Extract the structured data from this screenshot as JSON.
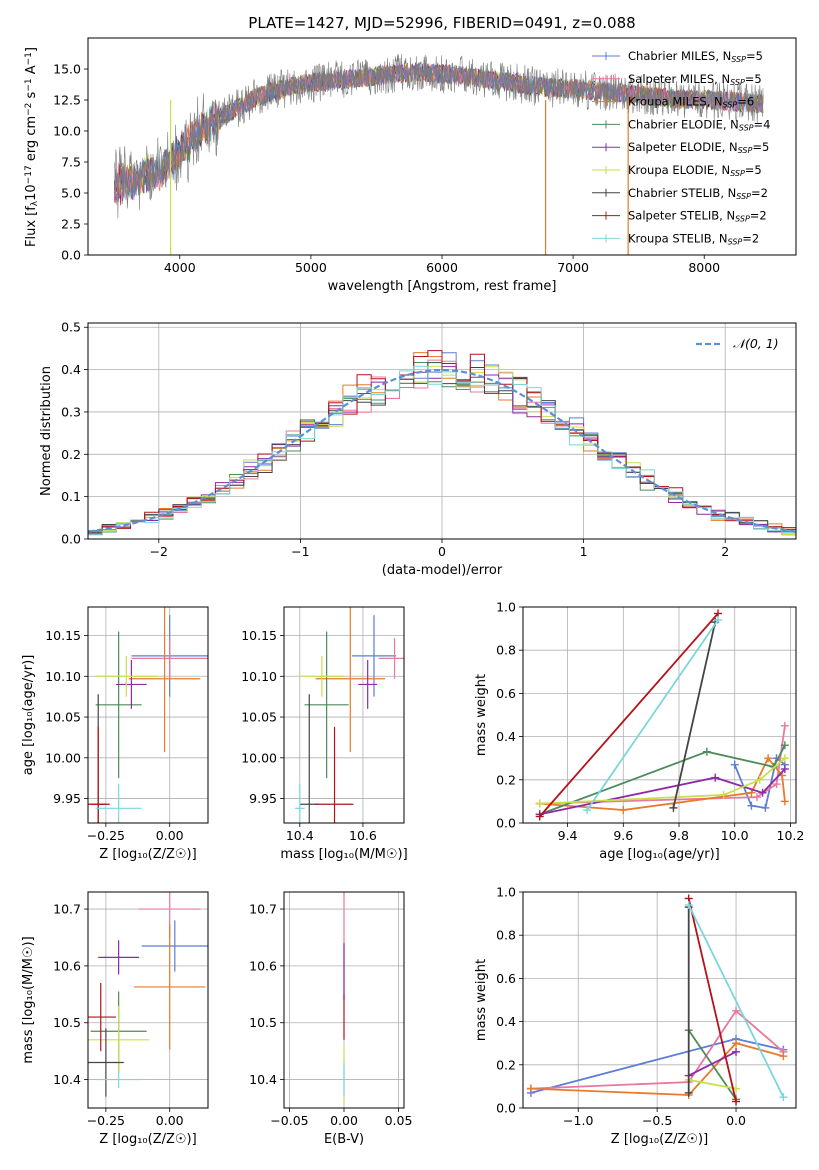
{
  "figure_title": "PLATE=1427, MJD=52996, FIBERID=0491, z=0.088",
  "colors": {
    "Chabrier MILES": "#5b7fd6",
    "Salpeter MILES": "#e8789e",
    "Kroupa MILES": "#e87a2c",
    "Chabrier ELODIE": "#4f8a5a",
    "Salpeter ELODIE": "#8e2aa8",
    "Kroupa ELODIE": "#c6e04a",
    "Chabrier STELIB": "#444444",
    "Salpeter STELIB": "#b3131b",
    "Kroupa STELIB": "#79d7dc"
  },
  "chart_data": [
    {
      "id": "spectrum",
      "type": "line",
      "title": "PLATE=1427, MJD=52996, FIBERID=0491, z=0.088",
      "xlabel": "wavelength [Angstrom, rest frame]",
      "ylabel": "Flux [f$_\\lambda$10$^{-17}$ erg cm$^{-2}$ s$^{-1}$ A$^{-1}$]",
      "ylabel_parts": [
        "Flux [f",
        "λ",
        "10",
        "−17",
        " erg cm",
        "−2",
        " s",
        "−1",
        " A",
        "−1",
        "]"
      ],
      "xlim": [
        3300,
        8700
      ],
      "ylim": [
        0,
        17.5
      ],
      "xticks": [
        4000,
        5000,
        6000,
        7000,
        8000
      ],
      "xtick_labels": [
        "4000",
        "5000",
        "6000",
        "7000",
        "8000"
      ],
      "yticks": [
        0,
        2.5,
        5,
        7.5,
        10,
        12.5,
        15
      ],
      "ytick_labels": [
        "0.0",
        "2.5",
        "5.0",
        "7.5",
        "10.0",
        "12.5",
        "15.0"
      ],
      "grid": false,
      "legend_position": "right",
      "series": [
        {
          "name": "Chabrier MILES, N",
          "sub": "SSP",
          "suffix": "=5"
        },
        {
          "name": "Salpeter MILES, N",
          "sub": "SSP",
          "suffix": "=5"
        },
        {
          "name": "Kroupa MILES, N",
          "sub": "SSP",
          "suffix": "=6"
        },
        {
          "name": "Chabrier ELODIE, N",
          "sub": "SSP",
          "suffix": "=4"
        },
        {
          "name": "Salpeter ELODIE, N",
          "sub": "SSP",
          "suffix": "=5"
        },
        {
          "name": "Kroupa ELODIE, N",
          "sub": "SSP",
          "suffix": "=5"
        },
        {
          "name": "Chabrier STELIB, N",
          "sub": "SSP",
          "suffix": "=2"
        },
        {
          "name": "Salpeter STELIB, N",
          "sub": "SSP",
          "suffix": "=2"
        },
        {
          "name": "Kroupa STELIB, N",
          "sub": "SSP",
          "suffix": "=2"
        }
      ],
      "continuum": {
        "x": [
          3500,
          3600,
          3700,
          3800,
          3900,
          4000,
          4100,
          4200,
          4300,
          4400,
          4500,
          4600,
          4700,
          4800,
          4900,
          5000,
          5200,
          5400,
          5600,
          5800,
          6000,
          6200,
          6400,
          6600,
          6800,
          7000,
          7200,
          7400,
          7600,
          7800,
          8000,
          8200,
          8400
        ],
        "y": [
          5.5,
          6.0,
          6.3,
          6.6,
          7.2,
          8.3,
          9.5,
          10.3,
          11.0,
          11.6,
          12.2,
          12.8,
          13.2,
          13.4,
          13.7,
          13.9,
          14.1,
          14.3,
          14.6,
          14.8,
          14.6,
          14.4,
          14.1,
          13.8,
          13.5,
          13.4,
          13.2,
          13.0,
          12.8,
          12.6,
          12.5,
          12.4,
          12.2
        ]
      }
    },
    {
      "id": "residual_hist",
      "type": "step",
      "xlabel": "(data-model)/error",
      "ylabel": "Normed distribution",
      "xlim": [
        -2.5,
        2.5
      ],
      "ylim": [
        0,
        0.51
      ],
      "xticks": [
        -2,
        -1,
        0,
        1,
        2
      ],
      "xtick_labels": [
        "−2",
        "−1",
        "0",
        "1",
        "2"
      ],
      "yticks": [
        0,
        0.1,
        0.2,
        0.3,
        0.4,
        0.5
      ],
      "ytick_labels": [
        "0.0",
        "0.1",
        "0.2",
        "0.3",
        "0.4",
        "0.5"
      ],
      "grid": true,
      "bin_width": 0.1,
      "legend": "𝒩(0, 1)",
      "legend_position": "top-right"
    },
    {
      "id": "age_vs_Z",
      "type": "errorbar",
      "xlabel": "Z [log₁₀(Z/Z☉)]",
      "ylabel": "age  [log₁₀(age/yr)]",
      "xlim": [
        -0.32,
        0.15
      ],
      "ylim": [
        9.92,
        10.185
      ],
      "xticks": [
        -0.25,
        0.0
      ],
      "xtick_labels": [
        "−0.25",
        "0.00"
      ],
      "yticks": [
        9.95,
        10.0,
        10.05,
        10.1,
        10.15
      ],
      "ytick_labels": [
        "9.95",
        "10.00",
        "10.05",
        "10.10",
        "10.15"
      ],
      "grid": true,
      "points": [
        {
          "series": "Chabrier MILES",
          "x": 0.0,
          "y": 10.125,
          "xerr": 0.15,
          "yerr": 0.05
        },
        {
          "series": "Salpeter MILES",
          "x": 0.0,
          "y": 10.122,
          "xerr": 0.15,
          "yerr": 0.025
        },
        {
          "series": "Kroupa MILES",
          "x": -0.02,
          "y": 10.097,
          "xerr": 0.14,
          "yerr": 0.09
        },
        {
          "series": "Chabrier ELODIE",
          "x": -0.2,
          "y": 10.065,
          "xerr": 0.09,
          "yerr": 0.09
        },
        {
          "series": "Salpeter ELODIE",
          "x": -0.15,
          "y": 10.09,
          "xerr": 0.06,
          "yerr": 0.03
        },
        {
          "series": "Kroupa ELODIE",
          "x": -0.17,
          "y": 10.1,
          "xerr": 0.12,
          "yerr": 0.025
        },
        {
          "series": "Chabrier STELIB",
          "x": -0.28,
          "y": 9.943,
          "xerr": 0.03,
          "yerr": 0.135
        },
        {
          "series": "Salpeter STELIB",
          "x": -0.28,
          "y": 9.943,
          "xerr": 0.045,
          "yerr": 0.095
        },
        {
          "series": "Kroupa STELIB",
          "x": -0.2,
          "y": 9.938,
          "xerr": 0.09,
          "yerr": 0.03
        }
      ]
    },
    {
      "id": "age_vs_mass",
      "type": "errorbar",
      "xlabel": "mass [log₁₀(M/M☉)]",
      "xlim": [
        10.35,
        10.73
      ],
      "ylim": [
        9.92,
        10.185
      ],
      "xticks": [
        10.4,
        10.6
      ],
      "xtick_labels": [
        "10.4",
        "10.6"
      ],
      "yticks": [
        9.95,
        10.0,
        10.05,
        10.1,
        10.15
      ],
      "ytick_labels": [
        "9.95",
        "10.00",
        "10.05",
        "10.10",
        "10.15"
      ],
      "grid": true,
      "points": [
        {
          "series": "Chabrier MILES",
          "x": 10.635,
          "y": 10.125,
          "xerr": 0.07,
          "yerr": 0.05
        },
        {
          "series": "Salpeter MILES",
          "x": 10.7,
          "y": 10.122,
          "xerr": 0.05,
          "yerr": 0.025
        },
        {
          "series": "Kroupa MILES",
          "x": 10.56,
          "y": 10.097,
          "xerr": 0.11,
          "yerr": 0.09
        },
        {
          "series": "Chabrier ELODIE",
          "x": 10.485,
          "y": 10.065,
          "xerr": 0.07,
          "yerr": 0.09
        },
        {
          "series": "Salpeter ELODIE",
          "x": 10.615,
          "y": 10.09,
          "xerr": 0.03,
          "yerr": 0.03
        },
        {
          "series": "Kroupa ELODIE",
          "x": 10.47,
          "y": 10.1,
          "xerr": 0.07,
          "yerr": 0.025
        },
        {
          "series": "Chabrier STELIB",
          "x": 10.43,
          "y": 9.943,
          "xerr": 0.03,
          "yerr": 0.135
        },
        {
          "series": "Salpeter STELIB",
          "x": 10.51,
          "y": 9.943,
          "xerr": 0.06,
          "yerr": 0.095
        },
        {
          "series": "Kroupa STELIB",
          "x": 10.4,
          "y": 9.938,
          "xerr": 0.015,
          "yerr": 0.03
        }
      ]
    },
    {
      "id": "weight_vs_age",
      "type": "line",
      "xlabel": "age  [log₁₀(age/yr)]",
      "ylabel": "mass weight",
      "xlim": [
        9.24,
        10.22
      ],
      "ylim": [
        0,
        1.0
      ],
      "xticks": [
        9.4,
        9.6,
        9.8,
        10.0,
        10.2
      ],
      "xtick_labels": [
        "9.4",
        "9.6",
        "9.8",
        "10.0",
        "10.2"
      ],
      "yticks": [
        0,
        0.2,
        0.4,
        0.6,
        0.8,
        1.0
      ],
      "ytick_labels": [
        "0.0",
        "0.2",
        "0.4",
        "0.6",
        "0.8",
        "1.0"
      ],
      "grid": true,
      "series": [
        {
          "series": "Chabrier MILES",
          "x": [
            10.0,
            10.06,
            10.11,
            10.15,
            10.18
          ],
          "y": [
            0.27,
            0.08,
            0.07,
            0.3,
            0.27
          ]
        },
        {
          "series": "Salpeter MILES",
          "x": [
            9.3,
            10.08,
            10.15,
            10.18
          ],
          "y": [
            0.09,
            0.12,
            0.18,
            0.45
          ]
        },
        {
          "series": "Kroupa MILES",
          "x": [
            9.3,
            9.6,
            10.06,
            10.12,
            10.17,
            10.18
          ],
          "y": [
            0.09,
            0.06,
            0.14,
            0.3,
            0.22,
            0.1
          ]
        },
        {
          "series": "Chabrier ELODIE",
          "x": [
            9.3,
            9.9,
            10.14,
            10.18
          ],
          "y": [
            0.04,
            0.33,
            0.26,
            0.36
          ]
        },
        {
          "series": "Salpeter ELODIE",
          "x": [
            9.3,
            9.93,
            10.1,
            10.18
          ],
          "y": [
            0.04,
            0.21,
            0.14,
            0.25
          ]
        },
        {
          "series": "Kroupa ELODIE",
          "x": [
            9.3,
            9.96,
            10.09,
            10.18
          ],
          "y": [
            0.09,
            0.13,
            0.2,
            0.3
          ]
        },
        {
          "series": "Chabrier STELIB",
          "x": [
            9.78,
            9.93
          ],
          "y": [
            0.07,
            0.93
          ]
        },
        {
          "series": "Salpeter STELIB",
          "x": [
            9.3,
            9.94
          ],
          "y": [
            0.03,
            0.97
          ]
        },
        {
          "series": "Kroupa STELIB",
          "x": [
            9.47,
            9.94
          ],
          "y": [
            0.06,
            0.94
          ]
        }
      ]
    },
    {
      "id": "mass_vs_Z",
      "type": "errorbar",
      "xlabel": "Z [log₁₀(Z/Z☉)]",
      "ylabel": "mass [log₁₀(M/M☉)]",
      "xlim": [
        -0.32,
        0.15
      ],
      "ylim": [
        10.35,
        10.73
      ],
      "xticks": [
        -0.25,
        0.0
      ],
      "xtick_labels": [
        "−0.25",
        "0.00"
      ],
      "yticks": [
        10.4,
        10.5,
        10.6,
        10.7
      ],
      "ytick_labels": [
        "10.4",
        "10.5",
        "10.6",
        "10.7"
      ],
      "grid": true,
      "points": [
        {
          "series": "Chabrier MILES",
          "x": 0.02,
          "y": 10.635,
          "xerr": 0.13,
          "yerr": 0.045
        },
        {
          "series": "Salpeter MILES",
          "x": 0.0,
          "y": 10.7,
          "xerr": 0.12,
          "yerr": 0.05
        },
        {
          "series": "Kroupa MILES",
          "x": 0.0,
          "y": 10.563,
          "xerr": 0.14,
          "yerr": 0.11
        },
        {
          "series": "Chabrier ELODIE",
          "x": -0.2,
          "y": 10.485,
          "xerr": 0.11,
          "yerr": 0.07
        },
        {
          "series": "Salpeter ELODIE",
          "x": -0.2,
          "y": 10.615,
          "xerr": 0.08,
          "yerr": 0.03
        },
        {
          "series": "Kroupa ELODIE",
          "x": -0.2,
          "y": 10.47,
          "xerr": 0.12,
          "yerr": 0.06
        },
        {
          "series": "Chabrier STELIB",
          "x": -0.25,
          "y": 10.43,
          "xerr": 0.07,
          "yerr": 0.06
        },
        {
          "series": "Salpeter STELIB",
          "x": -0.27,
          "y": 10.51,
          "xerr": 0.06,
          "yerr": 0.06
        },
        {
          "series": "Kroupa STELIB",
          "x": -0.2,
          "y": 10.4,
          "xerr": 0.09,
          "yerr": 0.015
        }
      ]
    },
    {
      "id": "mass_vs_ebv",
      "type": "errorbar",
      "xlabel": "E(B-V)",
      "xlim": [
        -0.055,
        0.055
      ],
      "ylim": [
        10.35,
        10.73
      ],
      "xticks": [
        -0.05,
        0.0,
        0.05
      ],
      "xtick_labels": [
        "−0.05",
        "0.00",
        "0.05"
      ],
      "yticks": [
        10.4,
        10.5,
        10.6,
        10.7
      ],
      "ytick_labels": [
        "10.4",
        "10.5",
        "10.6",
        "10.7"
      ],
      "grid": true,
      "points": [
        {
          "series": "Salpeter MILES",
          "x": 0.0,
          "y": 10.64,
          "xerr": 0,
          "yerr": 0.09
        },
        {
          "series": "Kroupa ELODIE",
          "x": 0.0,
          "y": 10.41,
          "xerr": 0,
          "yerr": 0.05
        },
        {
          "series": "Salpeter ELODIE",
          "x": 0.0,
          "y": 10.59,
          "xerr": 0,
          "yerr": 0.05
        },
        {
          "series": "Salpeter STELIB",
          "x": 0.0,
          "y": 10.51,
          "xerr": 0,
          "yerr": 0.04
        },
        {
          "series": "Kroupa STELIB",
          "x": 0.0,
          "y": 10.4,
          "xerr": 0,
          "yerr": 0.03
        }
      ]
    },
    {
      "id": "weight_vs_Z",
      "type": "line",
      "xlabel": "Z [log₁₀(Z/Z☉)]",
      "ylabel": "mass weight",
      "xlim": [
        -1.35,
        0.38
      ],
      "ylim": [
        0,
        1.0
      ],
      "xticks": [
        -1.0,
        -0.5,
        0.0
      ],
      "xtick_labels": [
        "−1.0",
        "−0.5",
        "0.0"
      ],
      "yticks": [
        0,
        0.2,
        0.4,
        0.6,
        0.8,
        1.0
      ],
      "ytick_labels": [
        "0.0",
        "0.2",
        "0.4",
        "0.6",
        "0.8",
        "1.0"
      ],
      "grid": true,
      "series": [
        {
          "series": "Chabrier MILES",
          "x": [
            -1.3,
            0.0,
            0.3
          ],
          "y": [
            0.07,
            0.32,
            0.27
          ]
        },
        {
          "series": "Salpeter MILES",
          "x": [
            -1.3,
            -0.3,
            0.0,
            0.3
          ],
          "y": [
            0.09,
            0.12,
            0.45,
            0.26
          ]
        },
        {
          "series": "Kroupa MILES",
          "x": [
            -1.3,
            -0.3,
            0.0,
            0.3
          ],
          "y": [
            0.09,
            0.06,
            0.3,
            0.24
          ]
        },
        {
          "series": "Chabrier ELODIE",
          "x": [
            -0.3,
            0.0
          ],
          "y": [
            0.36,
            0.04
          ]
        },
        {
          "series": "Salpeter ELODIE",
          "x": [
            -0.3,
            0.0
          ],
          "y": [
            0.15,
            0.26
          ]
        },
        {
          "series": "Kroupa ELODIE",
          "x": [
            -0.3,
            0.0
          ],
          "y": [
            0.13,
            0.09
          ]
        },
        {
          "series": "Chabrier STELIB",
          "x": [
            -0.3,
            -0.3
          ],
          "y": [
            0.07,
            0.93
          ]
        },
        {
          "series": "Salpeter STELIB",
          "x": [
            -0.3,
            0.0
          ],
          "y": [
            0.97,
            0.03
          ]
        },
        {
          "series": "Kroupa STELIB",
          "x": [
            -0.3,
            0.3
          ],
          "y": [
            0.94,
            0.05
          ]
        }
      ]
    }
  ]
}
